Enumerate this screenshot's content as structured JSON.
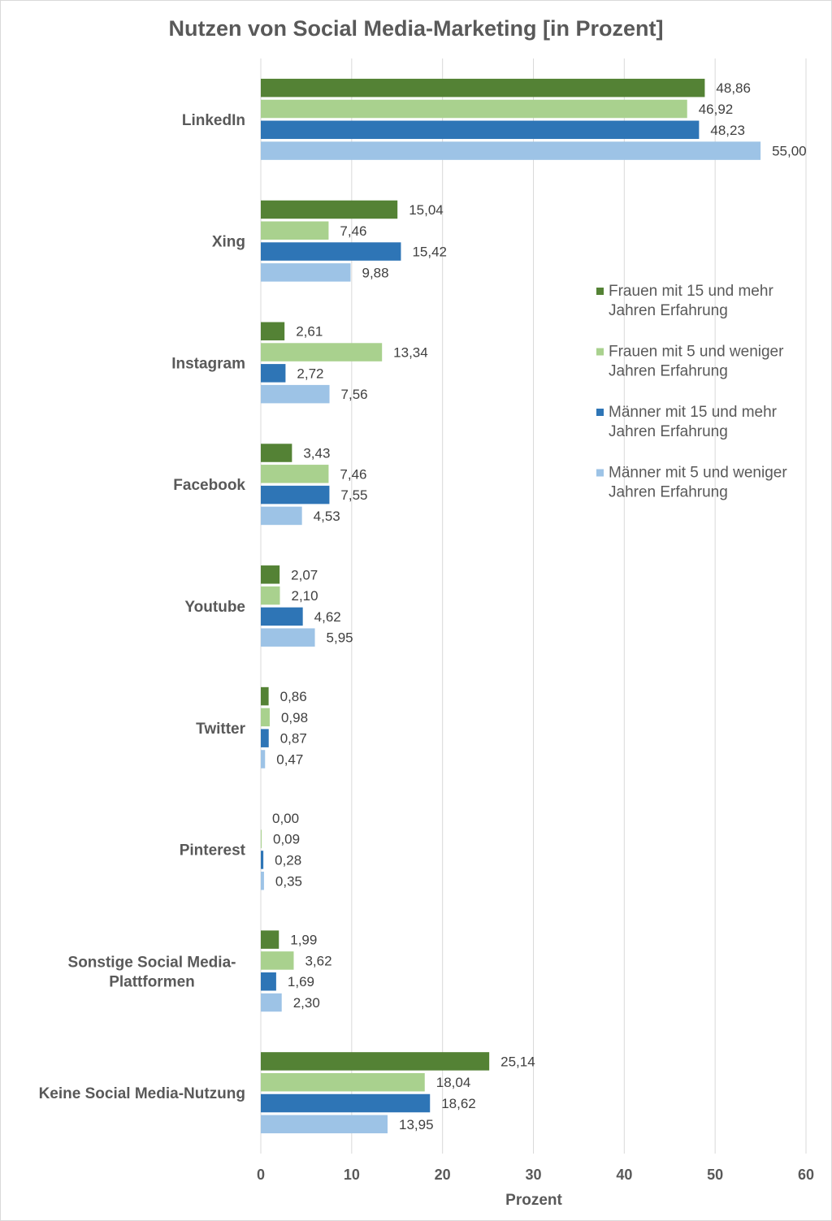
{
  "chart_data": {
    "type": "bar",
    "orientation": "horizontal",
    "title": "Nutzen von Social Media-Marketing [in Prozent]",
    "xlabel": "Prozent",
    "ylabel": "",
    "xlim": [
      0,
      60
    ],
    "x_ticks": [
      0,
      10,
      20,
      30,
      40,
      50,
      60
    ],
    "grid": true,
    "legend_position": "right",
    "categories": [
      [
        "LinkedIn"
      ],
      [
        "Xing"
      ],
      [
        "Instagram"
      ],
      [
        "Facebook"
      ],
      [
        "Youtube"
      ],
      [
        "Twitter"
      ],
      [
        "Pinterest"
      ],
      [
        "Sonstige Social Media-",
        "Plattformen"
      ],
      [
        "Keine Social Media-Nutzung"
      ]
    ],
    "series": [
      {
        "name": [
          "Frauen mit 15 und mehr",
          "Jahren Erfahrung"
        ],
        "color": "#548235",
        "values": [
          48.86,
          15.04,
          2.61,
          3.43,
          2.07,
          0.86,
          0.0,
          1.99,
          25.14
        ],
        "labels": [
          "48,86",
          "15,04",
          "2,61",
          "3,43",
          "2,07",
          "0,86",
          "0,00",
          "1,99",
          "25,14"
        ]
      },
      {
        "name": [
          "Frauen mit 5 und weniger",
          "Jahren Erfahrung"
        ],
        "color": "#a9d18e",
        "values": [
          46.92,
          7.46,
          13.34,
          7.46,
          2.1,
          0.98,
          0.09,
          3.62,
          18.04
        ],
        "labels": [
          "46,92",
          "7,46",
          "13,34",
          "7,46",
          "2,10",
          "0,98",
          "0,09",
          "3,62",
          "18,04"
        ]
      },
      {
        "name": [
          "Männer mit 15 und mehr",
          "Jahren Erfahrung"
        ],
        "color": "#2e75b6",
        "values": [
          48.23,
          15.42,
          2.72,
          7.55,
          4.62,
          0.87,
          0.28,
          1.69,
          18.62
        ],
        "labels": [
          "48,23",
          "15,42",
          "2,72",
          "7,55",
          "4,62",
          "0,87",
          "0,28",
          "1,69",
          "18,62"
        ]
      },
      {
        "name": [
          "Männer mit 5 und weniger",
          "Jahren Erfahrung"
        ],
        "color": "#9dc3e6",
        "values": [
          55.0,
          9.88,
          7.56,
          4.53,
          5.95,
          0.47,
          0.35,
          2.3,
          13.95
        ],
        "labels": [
          "55,00",
          "9,88",
          "7,56",
          "4,53",
          "5,95",
          "0,47",
          "0,35",
          "2,30",
          "13,95"
        ]
      }
    ]
  }
}
